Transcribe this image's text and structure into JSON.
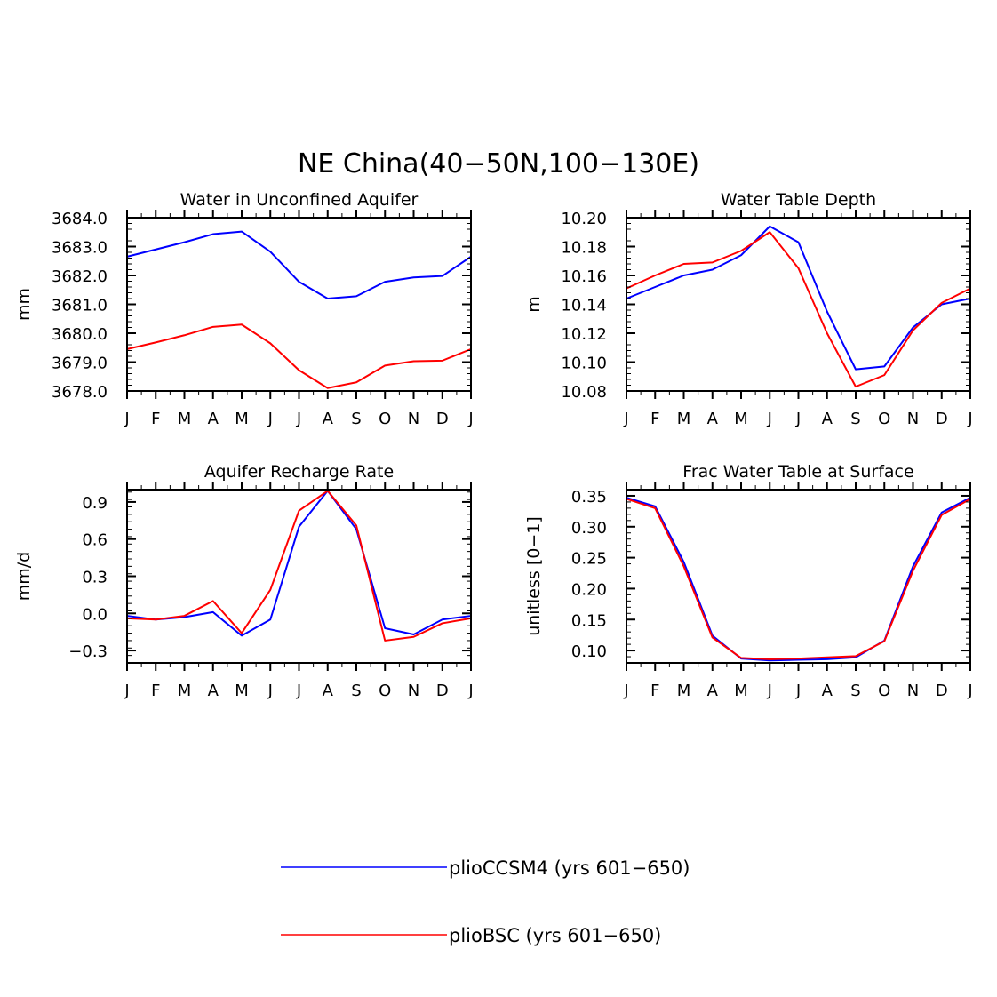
{
  "title": "NE China(40−50N,100−130E)",
  "colors": {
    "series_a": "#0000ff",
    "series_b": "#ff0000"
  },
  "legend": [
    {
      "label": "plioCCSM4 (yrs 601−650)",
      "color": "#0000ff"
    },
    {
      "label": "plioBSC (yrs 601−650)",
      "color": "#ff0000"
    }
  ],
  "chart_data": [
    {
      "type": "line",
      "title": "Water in Unconfined Aquifer",
      "ylabel": "mm",
      "xlabel": "",
      "categories": [
        "J",
        "F",
        "M",
        "A",
        "M",
        "J",
        "J",
        "A",
        "S",
        "O",
        "N",
        "D",
        "J"
      ],
      "ylim": [
        3678.0,
        3684.0
      ],
      "yticks": [
        "3678.0",
        "3679.0",
        "3680.0",
        "3681.0",
        "3682.0",
        "3683.0",
        "3684.0"
      ],
      "ytick_values": [
        3678.0,
        3679.0,
        3680.0,
        3681.0,
        3682.0,
        3683.0,
        3684.0
      ],
      "series": [
        {
          "name": "plioCCSM4 (yrs 601−650)",
          "color": "#0000ff",
          "values": [
            3682.65,
            3682.9,
            3683.15,
            3683.43,
            3683.52,
            3682.82,
            3681.78,
            3681.2,
            3681.28,
            3681.78,
            3681.93,
            3681.98,
            3682.65
          ]
        },
        {
          "name": "plioBSC (yrs 601−650)",
          "color": "#ff0000",
          "values": [
            3679.45,
            3679.68,
            3679.93,
            3680.22,
            3680.3,
            3679.65,
            3678.72,
            3678.1,
            3678.3,
            3678.88,
            3679.03,
            3679.05,
            3679.45
          ]
        }
      ]
    },
    {
      "type": "line",
      "title": "Water Table Depth",
      "ylabel": "m",
      "xlabel": "",
      "categories": [
        "J",
        "F",
        "M",
        "A",
        "M",
        "J",
        "J",
        "A",
        "S",
        "O",
        "N",
        "D",
        "J"
      ],
      "ylim": [
        10.08,
        10.2
      ],
      "yticks": [
        "10.08",
        "10.10",
        "10.12",
        "10.14",
        "10.16",
        "10.18",
        "10.20"
      ],
      "ytick_values": [
        10.08,
        10.1,
        10.12,
        10.14,
        10.16,
        10.18,
        10.2
      ],
      "series": [
        {
          "name": "plioCCSM4 (yrs 601−650)",
          "color": "#0000ff",
          "values": [
            10.144,
            10.152,
            10.16,
            10.164,
            10.174,
            10.194,
            10.183,
            10.135,
            10.095,
            10.097,
            10.124,
            10.14,
            10.144
          ]
        },
        {
          "name": "plioBSC (yrs 601−650)",
          "color": "#ff0000",
          "values": [
            10.151,
            10.16,
            10.168,
            10.169,
            10.177,
            10.19,
            10.165,
            10.12,
            10.083,
            10.091,
            10.122,
            10.141,
            10.151
          ]
        }
      ]
    },
    {
      "type": "line",
      "title": "Aquifer Recharge Rate",
      "ylabel": "mm/d",
      "xlabel": "",
      "categories": [
        "J",
        "F",
        "M",
        "A",
        "M",
        "J",
        "J",
        "A",
        "S",
        "O",
        "N",
        "D",
        "J"
      ],
      "ylim": [
        -0.4,
        1.0
      ],
      "yticks": [
        "−0.3",
        "0.0",
        "0.3",
        "0.6",
        "0.9"
      ],
      "ytick_values": [
        -0.3,
        0.0,
        0.3,
        0.6,
        0.9
      ],
      "series": [
        {
          "name": "plioCCSM4 (yrs 601−650)",
          "color": "#0000ff",
          "values": [
            -0.02,
            -0.05,
            -0.03,
            0.01,
            -0.18,
            -0.05,
            0.7,
            0.99,
            0.68,
            -0.12,
            -0.17,
            -0.05,
            -0.02
          ]
        },
        {
          "name": "plioBSC (yrs 601−650)",
          "color": "#ff0000",
          "values": [
            -0.04,
            -0.05,
            -0.02,
            0.1,
            -0.16,
            0.19,
            0.83,
            0.99,
            0.71,
            -0.22,
            -0.19,
            -0.08,
            -0.04
          ]
        }
      ]
    },
    {
      "type": "line",
      "title": "Frac Water Table at Surface",
      "ylabel": "unitless [0−1]",
      "xlabel": "",
      "categories": [
        "J",
        "F",
        "M",
        "A",
        "M",
        "J",
        "J",
        "A",
        "S",
        "O",
        "N",
        "D",
        "J"
      ],
      "ylim": [
        0.08,
        0.36
      ],
      "yticks": [
        "0.10",
        "0.15",
        "0.20",
        "0.25",
        "0.30",
        "0.35"
      ],
      "ytick_values": [
        0.1,
        0.15,
        0.2,
        0.25,
        0.3,
        0.35
      ],
      "series": [
        {
          "name": "plioCCSM4 (yrs 601−650)",
          "color": "#0000ff",
          "values": [
            0.347,
            0.333,
            0.243,
            0.124,
            0.087,
            0.084,
            0.085,
            0.086,
            0.089,
            0.116,
            0.236,
            0.323,
            0.347
          ]
        },
        {
          "name": "plioBSC (yrs 601−650)",
          "color": "#ff0000",
          "values": [
            0.345,
            0.33,
            0.236,
            0.121,
            0.088,
            0.086,
            0.087,
            0.089,
            0.091,
            0.115,
            0.229,
            0.319,
            0.345
          ]
        }
      ]
    }
  ]
}
